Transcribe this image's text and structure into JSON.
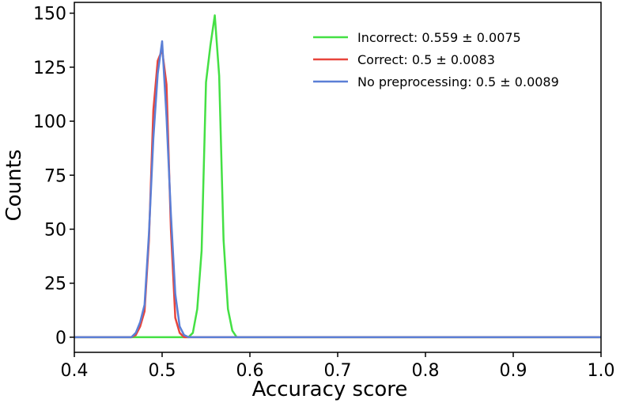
{
  "chart_data": {
    "type": "line",
    "title": "",
    "xlabel": "Accuracy score",
    "ylabel": "Counts",
    "xlim": [
      0.4,
      1.0
    ],
    "ylim": [
      -7,
      155
    ],
    "grid": false,
    "legend_placement": "top-right",
    "x_ticks": [
      0.4,
      0.5,
      0.6,
      0.7,
      0.8,
      0.9,
      1.0
    ],
    "x_tick_labels": [
      "0.4",
      "0.5",
      "0.6",
      "0.7",
      "0.8",
      "0.9",
      "1.0"
    ],
    "y_ticks": [
      0,
      25,
      50,
      75,
      100,
      125,
      150
    ],
    "y_tick_labels": [
      "0",
      "25",
      "50",
      "75",
      "100",
      "125",
      "150"
    ],
    "series": [
      {
        "name": "Incorrect: 0.559 ± 0.0075",
        "color": "#44e044",
        "x": [
          0.4,
          0.53,
          0.535,
          0.54,
          0.545,
          0.55,
          0.555,
          0.56,
          0.565,
          0.57,
          0.575,
          0.58,
          0.585,
          0.59,
          1.0
        ],
        "y": [
          0,
          0,
          2,
          13,
          40,
          118,
          135,
          149,
          121,
          45,
          13,
          3,
          0,
          0,
          0
        ]
      },
      {
        "name": "Correct: 0.5 ± 0.0083",
        "color": "#e8453c",
        "x": [
          0.4,
          0.465,
          0.47,
          0.475,
          0.48,
          0.485,
          0.49,
          0.495,
          0.5,
          0.505,
          0.51,
          0.515,
          0.52,
          0.525,
          0.53,
          0.535,
          1.0
        ],
        "y": [
          0,
          0,
          1,
          5,
          12,
          45,
          105,
          128,
          133,
          117,
          50,
          9,
          2,
          0,
          0,
          0,
          0
        ]
      },
      {
        "name": "No preprocessing: 0.5 ± 0.0089",
        "color": "#5b7fd6",
        "x": [
          0.4,
          0.465,
          0.47,
          0.475,
          0.48,
          0.485,
          0.49,
          0.495,
          0.5,
          0.505,
          0.51,
          0.515,
          0.52,
          0.525,
          0.53,
          0.535,
          1.0
        ],
        "y": [
          0,
          0,
          2,
          7,
          15,
          48,
          92,
          122,
          137,
          102,
          57,
          20,
          5,
          1,
          0,
          0,
          0
        ]
      }
    ]
  }
}
